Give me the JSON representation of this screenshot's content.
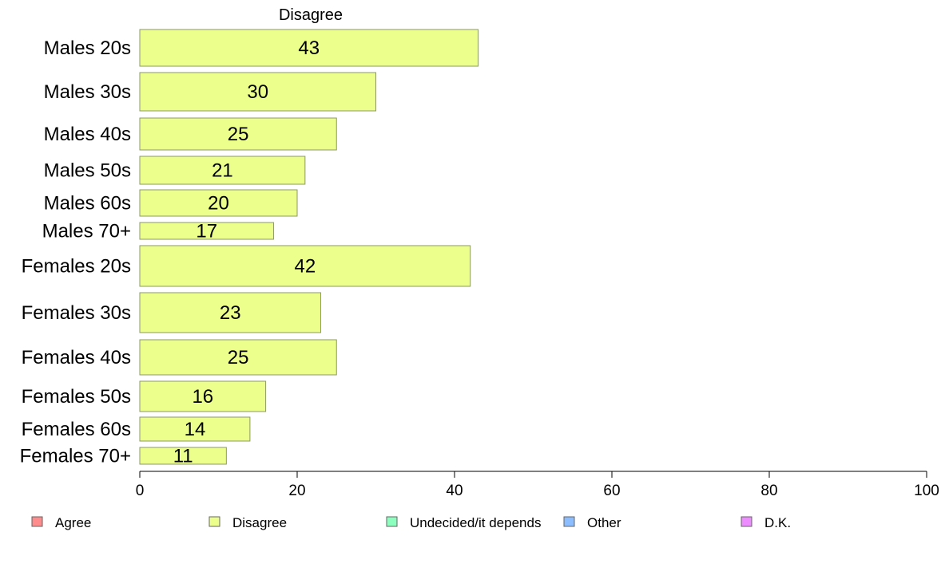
{
  "chart_data": {
    "type": "bar",
    "orientation": "horizontal",
    "title": "Disagree",
    "categories": [
      "Males 20s",
      "Males 30s",
      "Males 40s",
      "Males 50s",
      "Males 60s",
      "Males 70+",
      "Females 20s",
      "Females 30s",
      "Females 40s",
      "Females 50s",
      "Females 60s",
      "Females 70+"
    ],
    "values": [
      43,
      30,
      25,
      21,
      20,
      17,
      42,
      23,
      25,
      16,
      14,
      11
    ],
    "data_labels": [
      "43",
      "30",
      "25",
      "21",
      "20",
      "17",
      "42",
      "23",
      "25",
      "16",
      "14",
      "11"
    ],
    "bar_color": "#ecff8c",
    "bar_stroke": "#8c9966",
    "xlim": [
      0,
      100
    ],
    "xticks": [
      0,
      20,
      40,
      60,
      80,
      100
    ],
    "xtick_labels": [
      "0",
      "20",
      "40",
      "60",
      "80",
      "100"
    ],
    "grid": false,
    "legend_position": "bottom",
    "legend": [
      {
        "label": "Agree",
        "color": "#ff8c8c"
      },
      {
        "label": "Disagree",
        "color": "#ecff8c"
      },
      {
        "label": "Undecided/it depends",
        "color": "#8cffbe"
      },
      {
        "label": "Other",
        "color": "#8cbeff"
      },
      {
        "label": "D.K.",
        "color": "#ec8cff"
      }
    ]
  }
}
